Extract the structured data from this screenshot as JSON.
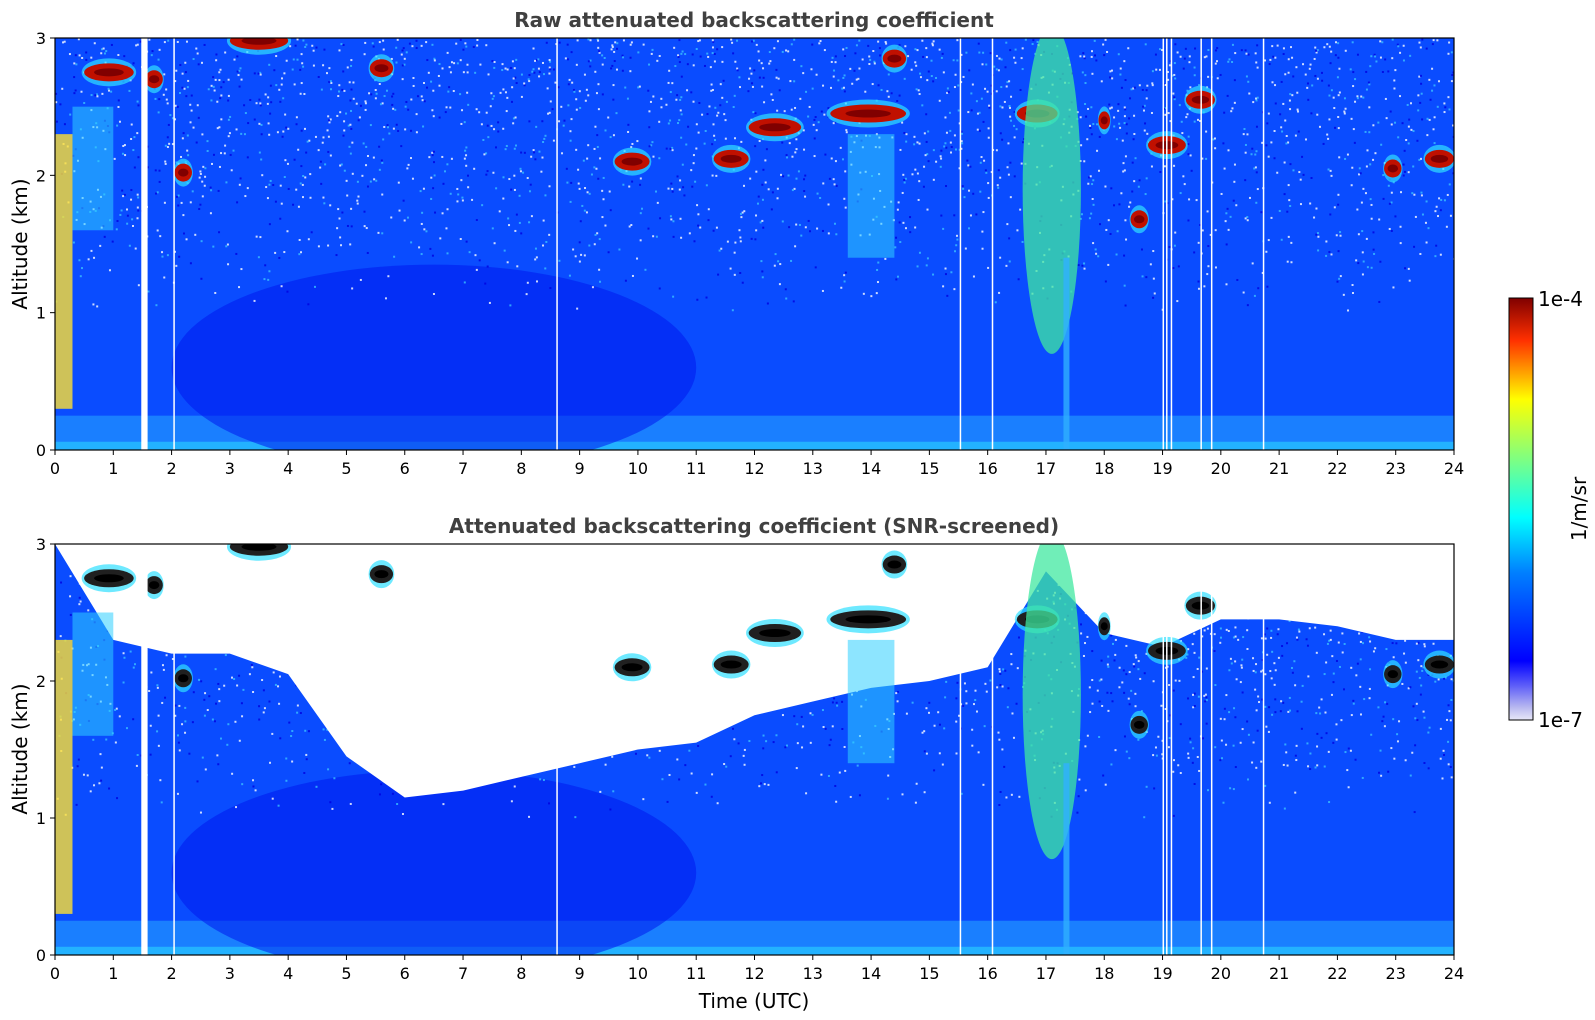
{
  "chart_data": [
    {
      "type": "heatmap",
      "title": "Raw attenuated backscattering coefficient",
      "xlabel": "",
      "ylabel": "Altitude (km)",
      "xlim": [
        0,
        24
      ],
      "ylim": [
        0,
        3
      ],
      "xticks": [
        "0",
        "1",
        "2",
        "3",
        "4",
        "5",
        "6",
        "7",
        "8",
        "9",
        "10",
        "11",
        "12",
        "13",
        "14",
        "15",
        "16",
        "17",
        "18",
        "19",
        "20",
        "21",
        "22",
        "23",
        "24"
      ],
      "yticks": [
        "0",
        "1",
        "2",
        "3"
      ],
      "missing_data_times": [
        1.48,
        1.52,
        2.03,
        8.6,
        15.52,
        16.07,
        19.0,
        19.06,
        19.14,
        19.65,
        19.83,
        20.72
      ],
      "cloud_layers": [
        {
          "t_start": 0.5,
          "t_end": 1.35,
          "alt_km": 2.75,
          "level": 0.95
        },
        {
          "t_start": 1.55,
          "t_end": 1.85,
          "alt_km": 2.7,
          "level": 0.9
        },
        {
          "t_start": 2.05,
          "t_end": 2.35,
          "alt_km": 2.02,
          "level": 0.9
        },
        {
          "t_start": 3.0,
          "t_end": 4.0,
          "alt_km": 2.98,
          "level": 0.9
        },
        {
          "t_start": 5.4,
          "t_end": 5.8,
          "alt_km": 2.78,
          "level": 0.9
        },
        {
          "t_start": 9.6,
          "t_end": 10.2,
          "alt_km": 2.1,
          "level": 0.95
        },
        {
          "t_start": 11.3,
          "t_end": 11.9,
          "alt_km": 2.12,
          "level": 0.95
        },
        {
          "t_start": 11.9,
          "t_end": 12.8,
          "alt_km": 2.35,
          "level": 0.95
        },
        {
          "t_start": 13.3,
          "t_end": 14.6,
          "alt_km": 2.45,
          "level": 0.95
        },
        {
          "t_start": 14.2,
          "t_end": 14.6,
          "alt_km": 2.85,
          "level": 0.9
        },
        {
          "t_start": 16.5,
          "t_end": 17.2,
          "alt_km": 2.45,
          "level": 0.95
        },
        {
          "t_start": 17.9,
          "t_end": 18.1,
          "alt_km": 2.4,
          "level": 0.9
        },
        {
          "t_start": 18.45,
          "t_end": 18.75,
          "alt_km": 1.68,
          "level": 0.9
        },
        {
          "t_start": 18.75,
          "t_end": 19.4,
          "alt_km": 2.22,
          "level": 0.95
        },
        {
          "t_start": 19.4,
          "t_end": 19.9,
          "alt_km": 2.55,
          "level": 0.95
        },
        {
          "t_start": 22.8,
          "t_end": 23.1,
          "alt_km": 2.05,
          "level": 0.9
        },
        {
          "t_start": 23.5,
          "t_end": 24.0,
          "alt_km": 2.12,
          "level": 0.9
        }
      ]
    },
    {
      "type": "heatmap",
      "title": "Attenuated backscattering coefficient (SNR-screened)",
      "xlabel": "Time (UTC)",
      "ylabel": "Altitude (km)",
      "xlim": [
        0,
        24
      ],
      "ylim": [
        0,
        3
      ],
      "xticks": [
        "0",
        "1",
        "2",
        "3",
        "4",
        "5",
        "6",
        "7",
        "8",
        "9",
        "10",
        "11",
        "12",
        "13",
        "14",
        "15",
        "16",
        "17",
        "18",
        "19",
        "20",
        "21",
        "22",
        "23",
        "24"
      ],
      "yticks": [
        "0",
        "1",
        "2",
        "3"
      ],
      "screened_region_lower_boundary_km": [
        {
          "t": 0.0,
          "alt": 3.0
        },
        {
          "t": 1.0,
          "alt": 2.3
        },
        {
          "t": 2.0,
          "alt": 2.2
        },
        {
          "t": 3.0,
          "alt": 2.2
        },
        {
          "t": 4.0,
          "alt": 2.05
        },
        {
          "t": 5.0,
          "alt": 1.45
        },
        {
          "t": 6.0,
          "alt": 1.15
        },
        {
          "t": 7.0,
          "alt": 1.2
        },
        {
          "t": 8.0,
          "alt": 1.3
        },
        {
          "t": 9.0,
          "alt": 1.4
        },
        {
          "t": 10.0,
          "alt": 1.5
        },
        {
          "t": 11.0,
          "alt": 1.55
        },
        {
          "t": 12.0,
          "alt": 1.75
        },
        {
          "t": 13.0,
          "alt": 1.85
        },
        {
          "t": 14.0,
          "alt": 1.95
        },
        {
          "t": 15.0,
          "alt": 2.0
        },
        {
          "t": 16.0,
          "alt": 2.1
        },
        {
          "t": 17.0,
          "alt": 2.8
        },
        {
          "t": 18.0,
          "alt": 2.35
        },
        {
          "t": 19.0,
          "alt": 2.25
        },
        {
          "t": 20.0,
          "alt": 2.45
        },
        {
          "t": 21.0,
          "alt": 2.45
        },
        {
          "t": 22.0,
          "alt": 2.4
        },
        {
          "t": 23.0,
          "alt": 2.3
        },
        {
          "t": 24.0,
          "alt": 2.3
        }
      ]
    }
  ],
  "colorbar": {
    "max_label": "1e-4",
    "min_label": "1e-7",
    "unit_label": "1/m/sr",
    "colormap": "jet",
    "scale": "log"
  }
}
